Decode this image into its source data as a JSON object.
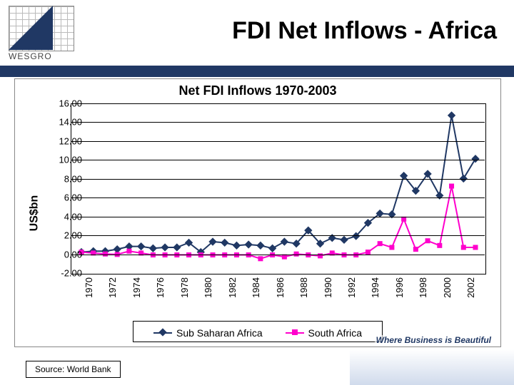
{
  "slide": {
    "title": "FDI Net Inflows - Africa",
    "tagline": "Where Business is Beautiful",
    "source": "Source: World Bank",
    "logo_text": "WESGRO",
    "brand_color": "#203864"
  },
  "chart": {
    "type": "line",
    "title": "Net FDI Inflows 1970-2003",
    "title_fontsize": 18,
    "ylabel": "US$bn",
    "label_fontsize": 16,
    "background_color": "#ffffff",
    "grid_color": "#000000",
    "axis_color": "#000000",
    "ylim": [
      -2,
      16
    ],
    "ytick_step": 2,
    "yticks": [
      "-2.00",
      "0.00",
      "2.00",
      "4.00",
      "6.00",
      "8.00",
      "10.00",
      "12.00",
      "14.00",
      "16.00"
    ],
    "xlabels": [
      "1970",
      "1972",
      "1974",
      "1976",
      "1978",
      "1980",
      "1982",
      "1984",
      "1986",
      "1988",
      "1990",
      "1992",
      "1994",
      "1996",
      "1998",
      "2000",
      "2002"
    ],
    "years": [
      1970,
      1971,
      1972,
      1973,
      1974,
      1975,
      1976,
      1977,
      1978,
      1979,
      1980,
      1981,
      1982,
      1983,
      1984,
      1985,
      1986,
      1987,
      1988,
      1989,
      1990,
      1991,
      1992,
      1993,
      1994,
      1995,
      1996,
      1997,
      1998,
      1999,
      2000,
      2001,
      2002,
      2003
    ],
    "series": [
      {
        "name": "Sub Saharan Africa",
        "color": "#203864",
        "marker": "diamond",
        "marker_size": 8,
        "line_width": 2,
        "values": [
          0.3,
          0.4,
          0.4,
          0.6,
          0.9,
          0.9,
          0.7,
          0.8,
          0.8,
          1.3,
          0.3,
          1.4,
          1.3,
          1.0,
          1.1,
          1.0,
          0.7,
          1.4,
          1.2,
          2.6,
          1.2,
          1.8,
          1.6,
          2.0,
          3.4,
          4.4,
          4.3,
          8.4,
          6.8,
          8.6,
          6.3,
          14.8,
          8.1,
          10.2
        ]
      },
      {
        "name": "South Africa",
        "color": "#ff00cc",
        "marker": "square",
        "marker_size": 7,
        "line_width": 2,
        "values": [
          0.3,
          0.2,
          0.1,
          0.05,
          0.4,
          0.2,
          0.0,
          0.0,
          0.0,
          0.0,
          0.0,
          0.0,
          0.0,
          0.0,
          0.0,
          -0.4,
          0.0,
          -0.2,
          0.1,
          0.0,
          -0.1,
          0.2,
          0.0,
          0.0,
          0.3,
          1.2,
          0.8,
          3.8,
          0.6,
          1.5,
          1.0,
          7.3,
          0.8,
          0.8
        ]
      }
    ],
    "legend_labels": [
      "Sub Saharan Africa",
      "South Africa"
    ]
  }
}
